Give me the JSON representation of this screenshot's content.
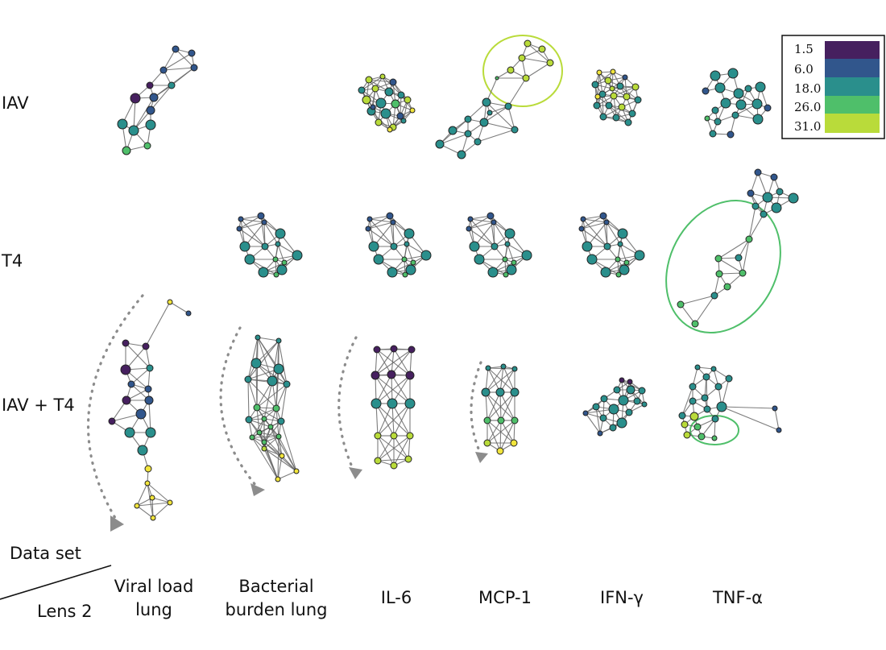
{
  "row_labels": [
    "IAV",
    "T4",
    "IAV + T4"
  ],
  "column_labels": [
    {
      "lines": [
        "Viral load",
        "lung"
      ]
    },
    {
      "lines": [
        "Bacterial",
        "burden lung"
      ]
    },
    {
      "lines": [
        "IL-6"
      ]
    },
    {
      "lines": [
        "MCP-1"
      ]
    },
    {
      "lines": [
        "IFN-γ"
      ]
    },
    {
      "lines": [
        "TNF-α"
      ]
    }
  ],
  "corner": {
    "top": "Data set",
    "bottom": "Lens 2"
  },
  "legend": [
    {
      "label": "1.5",
      "color": "#46205f"
    },
    {
      "label": "6.0",
      "color": "#31568c"
    },
    {
      "label": "18.0",
      "color": "#2a8f8c"
    },
    {
      "label": "26.0",
      "color": "#4fbf6a"
    },
    {
      "label": "31.0",
      "color": "#b9db3a"
    }
  ],
  "palette": {
    "purple": "#46205f",
    "blue": "#31568c",
    "teal": "#2a8f8c",
    "green": "#4fbf6a",
    "lime": "#b9db3a",
    "yellow": "#f2e53c",
    "highlight_lime": "#b9db3a",
    "highlight_green": "#4fbf6a"
  }
}
